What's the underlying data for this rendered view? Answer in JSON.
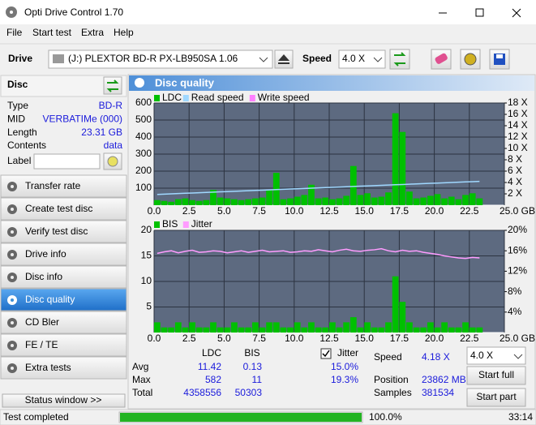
{
  "window": {
    "title": "Opti Drive Control 1.70"
  },
  "menu": [
    "File",
    "Start test",
    "Extra",
    "Help"
  ],
  "toolbar": {
    "drive_label": "Drive",
    "drive": "(J:)  PLEXTOR BD-R  PX-LB950SA 1.06",
    "speed_label": "Speed",
    "speed": "4.0 X"
  },
  "disc": {
    "header": "Disc",
    "rows": [
      [
        "Type",
        "BD-R"
      ],
      [
        "MID",
        "VERBATIMe (000)"
      ],
      [
        "Length",
        "23.31 GB"
      ],
      [
        "Contents",
        "data"
      ]
    ],
    "label": "Label"
  },
  "nav": [
    "Transfer rate",
    "Create test disc",
    "Verify test disc",
    "Drive info",
    "Disc info",
    "Disc quality",
    "CD Bler",
    "FE / TE",
    "Extra tests"
  ],
  "active_nav": 5,
  "status_window": "Status window >>",
  "panel_title": "Disc quality",
  "stats": {
    "columns": [
      "LDC",
      "BIS",
      "Jitter"
    ],
    "rows": [
      [
        "Avg",
        "11.42",
        "0.13",
        "15.0%"
      ],
      [
        "Max",
        "582",
        "11",
        "19.3%"
      ],
      [
        "Total",
        "4358556",
        "50303"
      ]
    ]
  },
  "speed_info": [
    [
      "Speed",
      "4.18 X"
    ],
    [
      "Position",
      "23862 MB"
    ],
    [
      "Samples",
      "381534"
    ]
  ],
  "controls": {
    "speed": "4.0 X",
    "start_full": "Start full",
    "start_part": "Start part"
  },
  "status": {
    "text": "Test completed",
    "progress": {
      "value": 100,
      "label": "100.0%"
    },
    "time": "33:14"
  },
  "chart_data": [
    {
      "type": "bar",
      "x": [
        0.0,
        0.5,
        1.0,
        1.5,
        2.0,
        2.5,
        3.0,
        3.5,
        4.0,
        4.5,
        5.0,
        5.5,
        6.0,
        6.5,
        7.0,
        7.5,
        8.0,
        8.5,
        9.0,
        9.5,
        10.0,
        10.5,
        11.0,
        11.5,
        12.0,
        12.5,
        13.0,
        13.5,
        14.0,
        14.5,
        15.0,
        15.5,
        16.0,
        16.5,
        17.0,
        17.5,
        18.0,
        18.5,
        19.0,
        19.5,
        20.0,
        20.5,
        21.0,
        21.5,
        22.0,
        22.5,
        23.0
      ],
      "series": [
        {
          "name": "LDC",
          "color": "#00c000",
          "values": [
            30,
            25,
            20,
            35,
            40,
            30,
            25,
            30,
            90,
            45,
            40,
            35,
            30,
            35,
            40,
            45,
            90,
            190,
            35,
            40,
            50,
            60,
            120,
            40,
            45,
            35,
            40,
            55,
            230,
            60,
            70,
            45,
            50,
            75,
            540,
            430,
            80,
            40,
            45,
            55,
            65,
            40,
            50,
            35,
            60,
            70,
            40
          ]
        },
        {
          "name": "Read speed",
          "color": "#a0d8ff",
          "type": "line",
          "axis": "y2",
          "values": [
            1.9,
            1.95,
            2.0,
            2.05,
            2.1,
            2.15,
            2.2,
            2.25,
            2.3,
            2.35,
            2.4,
            2.45,
            2.5,
            2.55,
            2.6,
            2.65,
            2.7,
            2.75,
            2.8,
            2.85,
            2.9,
            2.95,
            3.0,
            3.05,
            3.1,
            3.15,
            3.2,
            3.25,
            3.3,
            3.35,
            3.4,
            3.45,
            3.5,
            3.55,
            3.6,
            3.65,
            3.7,
            3.75,
            3.8,
            3.85,
            3.9,
            3.95,
            4.0,
            4.05,
            4.1,
            4.15,
            4.2
          ]
        },
        {
          "name": "Write speed",
          "color": "#ff80ff",
          "type": "line",
          "axis": "y2",
          "values": [
            null,
            null,
            null,
            null,
            null,
            null,
            null,
            null,
            null,
            null,
            null,
            null,
            null,
            null,
            null,
            null,
            null,
            null,
            null,
            null,
            null,
            null,
            null,
            null,
            null,
            null,
            null,
            null,
            null,
            null,
            null,
            null,
            null,
            null,
            null,
            null,
            null,
            null,
            null,
            null,
            null,
            null,
            null,
            null,
            null,
            null,
            null
          ]
        }
      ],
      "xlim": [
        0,
        25
      ],
      "xticks": [
        {
          "value": 0,
          "label": "0.0"
        },
        {
          "value": 2.5,
          "label": "2.5"
        },
        {
          "value": 5,
          "label": "5.0"
        },
        {
          "value": 7.5,
          "label": "7.5"
        },
        {
          "value": 10,
          "label": "10.0"
        },
        {
          "value": 12.5,
          "label": "12.5"
        },
        {
          "value": 15,
          "label": "15.0"
        },
        {
          "value": 17.5,
          "label": "17.5"
        },
        {
          "value": 20,
          "label": "20.0"
        },
        {
          "value": 22.5,
          "label": "22.5"
        },
        {
          "value": 25,
          "label": "25.0 GB"
        }
      ],
      "ylim": [
        0,
        600
      ],
      "yticks": [
        100,
        200,
        300,
        400,
        500,
        600
      ],
      "y2lim": [
        0,
        18
      ],
      "y2ticks": [
        {
          "value": 2,
          "label": "2 X"
        },
        {
          "value": 4,
          "label": "4 X"
        },
        {
          "value": 6,
          "label": "6 X"
        },
        {
          "value": 8,
          "label": "8 X"
        },
        {
          "value": 10,
          "label": "10 X"
        },
        {
          "value": 12,
          "label": "12 X"
        },
        {
          "value": 14,
          "label": "14 X"
        },
        {
          "value": 16,
          "label": "16 X"
        },
        {
          "value": 18,
          "label": "18 X"
        }
      ],
      "grid": true
    },
    {
      "type": "bar",
      "x": [
        0.0,
        0.5,
        1.0,
        1.5,
        2.0,
        2.5,
        3.0,
        3.5,
        4.0,
        4.5,
        5.0,
        5.5,
        6.0,
        6.5,
        7.0,
        7.5,
        8.0,
        8.5,
        9.0,
        9.5,
        10.0,
        10.5,
        11.0,
        11.5,
        12.0,
        12.5,
        13.0,
        13.5,
        14.0,
        14.5,
        15.0,
        15.5,
        16.0,
        16.5,
        17.0,
        17.5,
        18.0,
        18.5,
        19.0,
        19.5,
        20.0,
        20.5,
        21.0,
        21.5,
        22.0,
        22.5,
        23.0
      ],
      "series": [
        {
          "name": "BIS",
          "color": "#00c000",
          "values": [
            2,
            1,
            1,
            2,
            1,
            2,
            1,
            1,
            2,
            1,
            1,
            2,
            1,
            1,
            2,
            1,
            2,
            2,
            1,
            1,
            2,
            1,
            2,
            1,
            1,
            2,
            1,
            2,
            3,
            1,
            2,
            1,
            1,
            2,
            11,
            6,
            2,
            1,
            1,
            2,
            1,
            2,
            1,
            1,
            2,
            1,
            1
          ]
        },
        {
          "name": "Jitter",
          "color": "#ff9cff",
          "type": "line",
          "axis": "y2",
          "values": [
            15.5,
            15.8,
            16.0,
            15.6,
            15.9,
            16.1,
            15.7,
            15.8,
            16.0,
            15.9,
            15.6,
            15.8,
            16.0,
            15.7,
            15.9,
            16.1,
            15.8,
            15.9,
            16.0,
            15.7,
            15.8,
            16.0,
            15.9,
            16.2,
            16.0,
            15.8,
            16.1,
            16.3,
            16.0,
            15.9,
            16.1,
            16.2,
            16.4,
            16.0,
            15.8,
            16.1,
            15.9,
            16.0,
            15.7,
            15.5,
            15.3,
            15.0,
            14.8,
            14.6,
            14.5,
            14.7,
            14.6
          ]
        }
      ],
      "xlim": [
        0,
        25
      ],
      "xticks": [
        {
          "value": 0,
          "label": "0.0"
        },
        {
          "value": 2.5,
          "label": "2.5"
        },
        {
          "value": 5,
          "label": "5.0"
        },
        {
          "value": 7.5,
          "label": "7.5"
        },
        {
          "value": 10,
          "label": "10.0"
        },
        {
          "value": 12.5,
          "label": "12.5"
        },
        {
          "value": 15,
          "label": "15.0"
        },
        {
          "value": 17.5,
          "label": "17.5"
        },
        {
          "value": 20,
          "label": "20.0"
        },
        {
          "value": 22.5,
          "label": "22.5"
        },
        {
          "value": 25,
          "label": "25.0 GB"
        }
      ],
      "ylim": [
        0,
        20
      ],
      "yticks": [
        5,
        10,
        15,
        20
      ],
      "y2lim": [
        0,
        20
      ],
      "y2ticks": [
        {
          "value": 4,
          "label": "4%"
        },
        {
          "value": 8,
          "label": "8%"
        },
        {
          "value": 12,
          "label": "12%"
        },
        {
          "value": 16,
          "label": "16%"
        },
        {
          "value": 20,
          "label": "20%"
        }
      ],
      "grid": true
    }
  ]
}
